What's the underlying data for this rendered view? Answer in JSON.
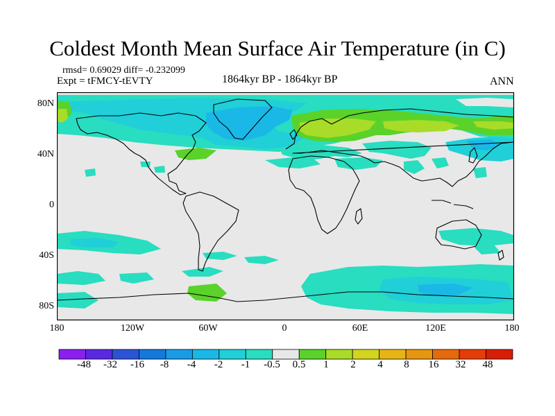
{
  "title": "Coldest Month Mean Surface Air Temperature (in C)",
  "stats": "rmsd= 0.69029 diff= -0.232099",
  "experiment": "Expt = tFMCY-tEVTY",
  "period": "1864kyr BP - 1864kyr BP",
  "season": "ANN",
  "map": {
    "lat_labels": [
      "80N",
      "40N",
      "0",
      "40S",
      "80S"
    ],
    "lon_labels": [
      "180",
      "120W",
      "60W",
      "0",
      "60E",
      "120E",
      "180"
    ]
  },
  "colorbar": {
    "labels": [
      "-48",
      "-32",
      "-16",
      "-8",
      "-4",
      "-2",
      "-1",
      "-0.5",
      "0.5",
      "1",
      "2",
      "4",
      "8",
      "16",
      "32",
      "48"
    ],
    "colors": [
      "#8a1ff0",
      "#5a28e0",
      "#2b53d6",
      "#1478dc",
      "#1a9be6",
      "#1ab8e6",
      "#20cfd8",
      "#28ddc0",
      "#e8e8e8",
      "#5ad22a",
      "#a8dc28",
      "#d2d41e",
      "#e6b414",
      "#e6960f",
      "#e6690c",
      "#e63c08",
      "#d81e05"
    ]
  }
}
